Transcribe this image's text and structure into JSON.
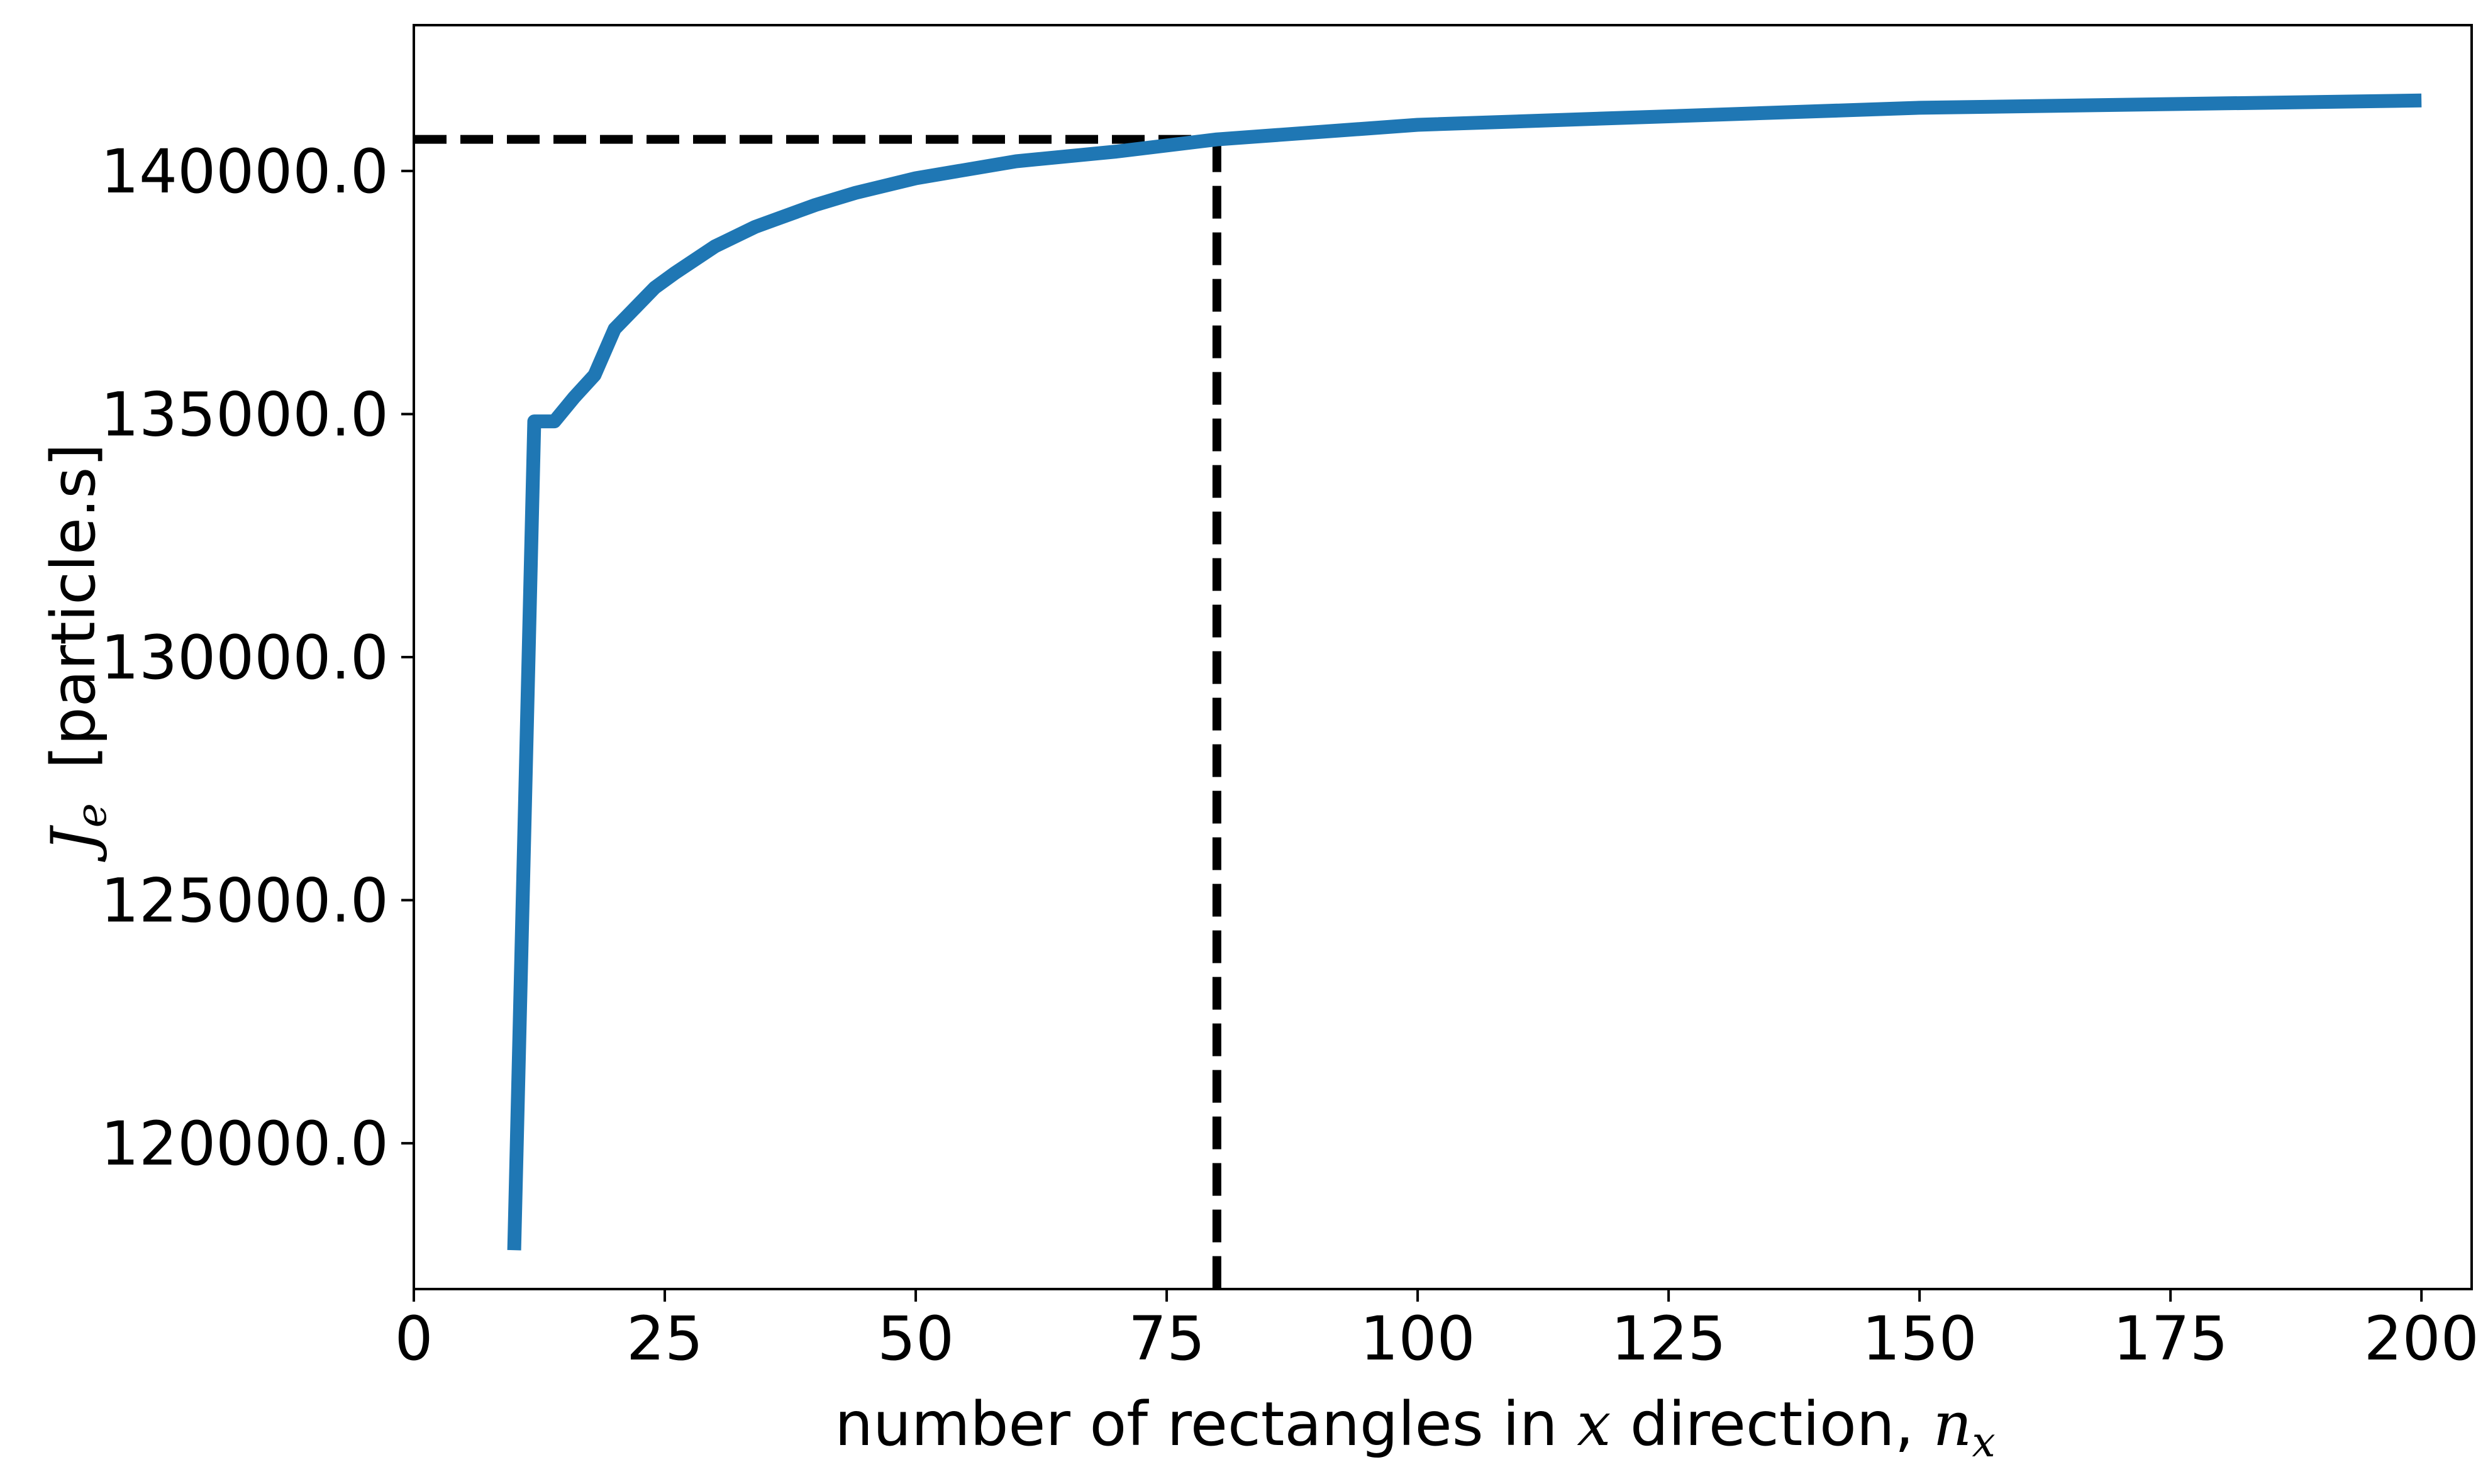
{
  "chart_data": {
    "type": "line",
    "title": "",
    "xlabel": {
      "text": "number of rectangles in",
      "var": "x",
      "text2": "direction,",
      "sym": "n",
      "sub": "x"
    },
    "ylabel": {
      "sym": "J",
      "sub": "e",
      "text": "[particle.s]"
    },
    "xlim": [
      0,
      205
    ],
    "ylim": [
      117000,
      143000
    ],
    "xticks": [
      0,
      25,
      50,
      75,
      100,
      125,
      150,
      175,
      200
    ],
    "xtick_labels": [
      "0",
      "25",
      "50",
      "75",
      "100",
      "125",
      "150",
      "175",
      "200"
    ],
    "yticks": [
      120000,
      125000,
      130000,
      135000,
      140000
    ],
    "ytick_labels": [
      "120000.0",
      "125000.0",
      "130000.0",
      "135000.0",
      "140000.0"
    ],
    "series": [
      {
        "color": "#1f77b4",
        "x": [
          10,
          12,
          14,
          16,
          18,
          20,
          24,
          26,
          30,
          34,
          36,
          40,
          44,
          50,
          60,
          70,
          80,
          100,
          150,
          200
        ],
        "y": [
          117800,
          134850,
          134850,
          135350,
          135800,
          136750,
          137600,
          137900,
          138450,
          138850,
          139000,
          139300,
          139550,
          139850,
          140200,
          140400,
          140650,
          140950,
          141300,
          141450
        ]
      }
    ],
    "reference_lines": {
      "color": "#000000",
      "x": 80,
      "y": 140650
    },
    "grid": false,
    "legend": "none"
  }
}
